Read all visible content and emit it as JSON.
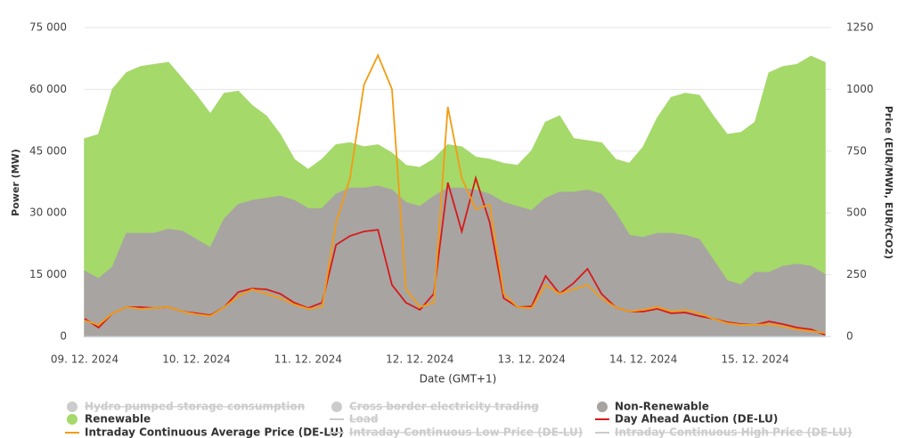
{
  "chart_data": {
    "type": "area",
    "ylabel": "Power (MW)",
    "y2label": "Price (EUR/MWh, EUR/tCO2)",
    "xlabel": "Date (GMT+1)",
    "categories": [
      "09. 12. 2024",
      null,
      null,
      null,
      null,
      null,
      null,
      null,
      "10. 12. 2024",
      null,
      null,
      null,
      null,
      null,
      null,
      null,
      "11. 12. 2024",
      null,
      null,
      null,
      null,
      null,
      null,
      null,
      "12. 12. 2024",
      null,
      null,
      null,
      null,
      null,
      null,
      null,
      "13. 12. 2024",
      null,
      null,
      null,
      null,
      null,
      null,
      null,
      "14. 12. 2024",
      null,
      null,
      null,
      null,
      null,
      null,
      null,
      "15. 12. 2024",
      null,
      null,
      null,
      null,
      null
    ],
    "ylim": [
      0,
      75000
    ],
    "yticks": [
      {
        "value": 0,
        "label": "0"
      },
      {
        "value": 15000,
        "label": "15 000"
      },
      {
        "value": 30000,
        "label": "30 000"
      },
      {
        "value": 45000,
        "label": "45 000"
      },
      {
        "value": 60000,
        "label": "60 000"
      },
      {
        "value": 75000,
        "label": "75 000"
      }
    ],
    "y2lim": [
      0,
      1250
    ],
    "y2ticks": [
      0,
      250,
      500,
      750,
      1000,
      1250
    ],
    "grid": true,
    "series": [
      {
        "name": "Hydro pumped storage consumption",
        "color": "#cccccc",
        "symbol": "circle",
        "visible": false
      },
      {
        "name": "Cross border electricity trading",
        "color": "#cccccc",
        "symbol": "circle",
        "visible": false
      },
      {
        "name": "Non-Renewable",
        "color": "#a8a4a1",
        "symbol": "circle",
        "visible": true,
        "kind": "area",
        "stack": 0,
        "values": [
          15800,
          14000,
          16800,
          25000,
          25000,
          25000,
          26000,
          25500,
          23500,
          21500,
          28500,
          32000,
          33000,
          33500,
          34000,
          33000,
          31000,
          31000,
          34500,
          36000,
          36000,
          36500,
          35500,
          32500,
          31500,
          34000,
          36000,
          36000,
          35500,
          34500,
          32500,
          31500,
          30500,
          33500,
          35000,
          35000,
          35500,
          34500,
          30000,
          24500,
          24000,
          25000,
          25000,
          24500,
          23500,
          18500,
          13500,
          12500,
          15500,
          15500,
          17000,
          17500,
          17000,
          15000
        ]
      },
      {
        "name": "Renewable",
        "color": "#a5d96a",
        "symbol": "circle",
        "visible": true,
        "kind": "area",
        "stack": 1,
        "values": [
          32200,
          35000,
          43200,
          39000,
          40500,
          41000,
          40500,
          37000,
          35000,
          32500,
          30500,
          27500,
          23000,
          20000,
          15000,
          10000,
          9500,
          12000,
          12000,
          11000,
          10000,
          10000,
          9000,
          9000,
          9500,
          9000,
          10500,
          10000,
          8000,
          8500,
          9500,
          10000,
          14500,
          18500,
          18500,
          13000,
          12000,
          12500,
          13000,
          17500,
          22000,
          28000,
          33000,
          34500,
          35000,
          35000,
          35500,
          37000,
          36500,
          48500,
          48500,
          48500,
          51000,
          51500
        ]
      },
      {
        "name": "Load",
        "color": "#cccccc",
        "symbol": "line",
        "visible": false
      },
      {
        "name": "Day Ahead Auction (DE-LU)",
        "color": "#d7191c",
        "symbol": "line",
        "visible": true,
        "kind": "line",
        "axis": "y2",
        "values": [
          72,
          36,
          94,
          119,
          119,
          115,
          119,
          101,
          94,
          86,
          119,
          180,
          194,
          191,
          173,
          137,
          115,
          137,
          371,
          407,
          425,
          432,
          209,
          137,
          108,
          173,
          623,
          425,
          641,
          461,
          155,
          119,
          122,
          245,
          173,
          216,
          274,
          173,
          119,
          101,
          101,
          112,
          94,
          97,
          83,
          72,
          58,
          50,
          47,
          61,
          50,
          36,
          29,
          7
        ]
      },
      {
        "name": "Intraday Continuous Average Price (DE-LU)",
        "color": "#f39c12",
        "symbol": "line",
        "visible": true,
        "kind": "line",
        "axis": "y2",
        "values": [
          65,
          47,
          94,
          119,
          112,
          115,
          119,
          101,
          90,
          83,
          119,
          162,
          191,
          173,
          155,
          130,
          112,
          119,
          461,
          641,
          1019,
          1138,
          1001,
          191,
          119,
          137,
          929,
          641,
          515,
          533,
          173,
          119,
          115,
          209,
          173,
          191,
          209,
          155,
          119,
          101,
          108,
          119,
          101,
          108,
          94,
          72,
          54,
          47,
          47,
          50,
          40,
          29,
          22,
          14
        ]
      },
      {
        "name": "Intraday Continuous Low Price (DE-LU)",
        "color": "#cccccc",
        "symbol": "line",
        "visible": false
      },
      {
        "name": "Intraday Continuous High Price (DE-LU)",
        "color": "#cccccc",
        "symbol": "line",
        "visible": false
      }
    ]
  }
}
